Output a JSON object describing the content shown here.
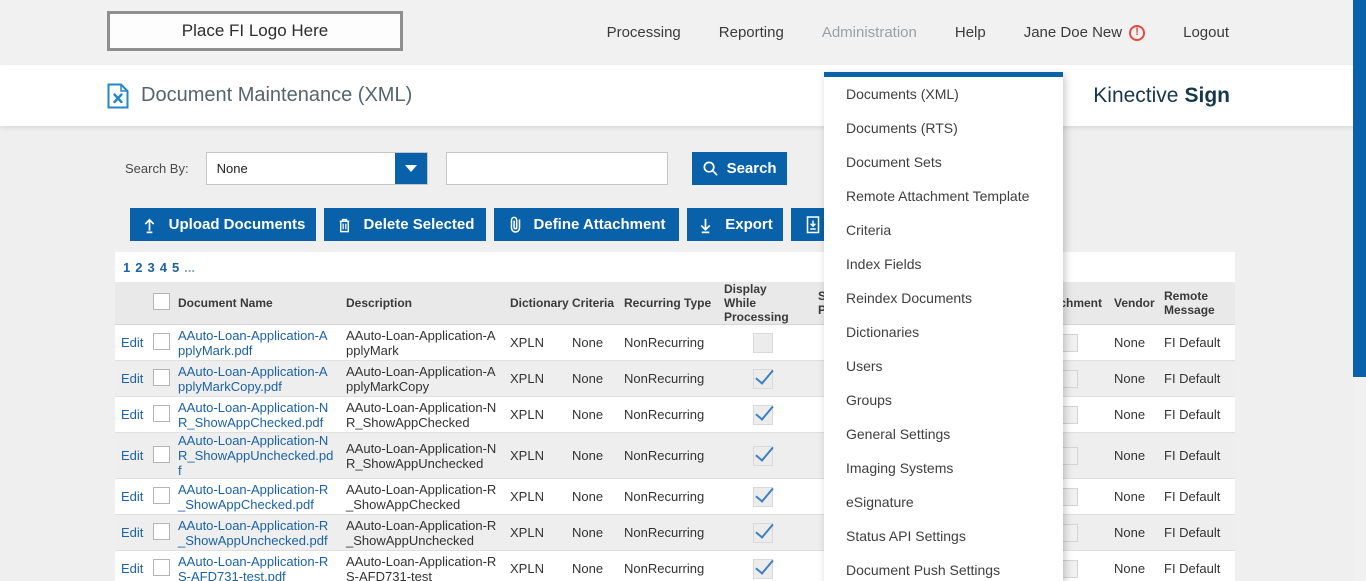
{
  "header": {
    "logo_placeholder": "Place FI Logo Here",
    "nav_items": [
      {
        "label": "Processing",
        "active": false,
        "alert": false
      },
      {
        "label": "Reporting",
        "active": false,
        "alert": false
      },
      {
        "label": "Administration",
        "active": true,
        "alert": false
      },
      {
        "label": "Help",
        "active": false,
        "alert": false
      },
      {
        "label": "Jane Doe New",
        "active": false,
        "alert": true
      },
      {
        "label": "Logout",
        "active": false,
        "alert": false
      }
    ]
  },
  "title_bar": {
    "page_title": "Document Maintenance (XML)",
    "brand_regular": "Kinective",
    "brand_bold": "Sign"
  },
  "admin_menu": {
    "items": [
      "Documents (XML)",
      "Documents (RTS)",
      "Document Sets",
      "Remote Attachment Template",
      "Criteria",
      "Index Fields",
      "Reindex Documents",
      "Dictionaries",
      "Users",
      "Groups",
      "General Settings",
      "Imaging Systems",
      "eSignature",
      "Status API Settings",
      "Document Push Settings"
    ]
  },
  "search": {
    "label": "Search By:",
    "dropdown_value": "None",
    "input_value": "",
    "button_label": "Search"
  },
  "toolbar": {
    "upload": "Upload Documents",
    "delete": "Delete Selected",
    "define_attachment": "Define Attachment",
    "export": "Export"
  },
  "pagination": {
    "pages": [
      "1",
      "2",
      "3",
      "4",
      "5"
    ],
    "ellipsis": "..."
  },
  "table": {
    "edit_label": "Edit",
    "headers": {
      "document_name": "Document Name",
      "description": "Description",
      "dictionary": "Dictionary",
      "criteria": "Criteria",
      "recurring_type": "Recurring Type",
      "display_while_processing": "Display While Processing",
      "covered_fragment_line1": "S",
      "covered_fragment_line2": "P",
      "attachment": "Attachment",
      "vendor": "Vendor",
      "remote_message": "Remote Message"
    },
    "rows": [
      {
        "document_name": "AAuto-Loan-Application-ApplyMark.pdf",
        "description": "AAuto-Loan-Application-ApplyMark",
        "dictionary": "XPLN",
        "criteria": "None",
        "recurring_type": "NonRecurring",
        "display_while_processing": false,
        "vendor": "None",
        "remote_message": "FI Default"
      },
      {
        "document_name": "AAuto-Loan-Application-ApplyMarkCopy.pdf",
        "description": "AAuto-Loan-Application-ApplyMarkCopy",
        "dictionary": "XPLN",
        "criteria": "None",
        "recurring_type": "NonRecurring",
        "display_while_processing": true,
        "vendor": "None",
        "remote_message": "FI Default"
      },
      {
        "document_name": "AAuto-Loan-Application-NR_ShowAppChecked.pdf",
        "description": "AAuto-Loan-Application-NR_ShowAppChecked",
        "dictionary": "XPLN",
        "criteria": "None",
        "recurring_type": "NonRecurring",
        "display_while_processing": true,
        "vendor": "None",
        "remote_message": "FI Default"
      },
      {
        "document_name": "AAuto-Loan-Application-NR_ShowAppUnchecked.pdf",
        "description": "AAuto-Loan-Application-NR_ShowAppUnchecked",
        "dictionary": "XPLN",
        "criteria": "None",
        "recurring_type": "NonRecurring",
        "display_while_processing": true,
        "vendor": "None",
        "remote_message": "FI Default"
      },
      {
        "document_name": "AAuto-Loan-Application-R_ShowAppChecked.pdf",
        "description": "AAuto-Loan-Application-R_ShowAppChecked",
        "dictionary": "XPLN",
        "criteria": "None",
        "recurring_type": "NonRecurring",
        "display_while_processing": true,
        "vendor": "None",
        "remote_message": "FI Default"
      },
      {
        "document_name": "AAuto-Loan-Application-R_ShowAppUnchecked.pdf",
        "description": "AAuto-Loan-Application-R_ShowAppUnchecked",
        "dictionary": "XPLN",
        "criteria": "None",
        "recurring_type": "NonRecurring",
        "display_while_processing": true,
        "vendor": "None",
        "remote_message": "FI Default"
      },
      {
        "document_name": "AAuto-Loan-Application-RS-AFD731-test.pdf",
        "description": "AAuto-Loan-Application-RS-AFD731-test",
        "dictionary": "XPLN",
        "criteria": "None",
        "recurring_type": "NonRecurring",
        "display_while_processing": true,
        "vendor": "None",
        "remote_message": "FI Default"
      }
    ]
  },
  "colors": {
    "accent_blue": "#0962a9",
    "link_blue": "#1b62a8",
    "brand_navy": "#17384a",
    "alert_red": "#e24a3f"
  }
}
